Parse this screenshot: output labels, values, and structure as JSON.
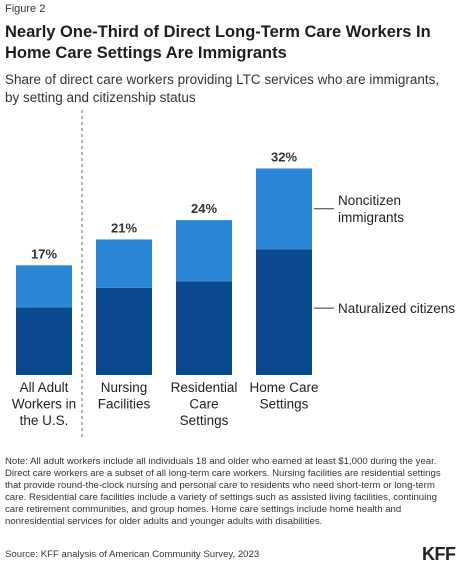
{
  "figure_label": "Figure 2",
  "title": "Nearly One-Third of Direct Long-Term Care Workers In Home Care Settings Are Immigrants",
  "subtitle": "Share of direct care workers providing LTC services who are immigrants, by setting and citizenship status",
  "note": "Note: All adult workers include all individuals 18 and older who earned at least $1,000 during the year. Direct care workers are a subset of all long-term care workers. Nursing facilities are residential settings that provide round-the-clock nursing and personal care to residents who need short-term or long-term care. Residential care facilities include a variety of settings such as assisted living facilities, continuing care retirement communities, and group homes. Home care settings include home health and nonresidential services for older adults and younger adults with disabilities.",
  "source": "Source: KFF analysis of American Community Survey, 2023",
  "logo": "KFF",
  "chart_data": {
    "type": "bar",
    "stacked": true,
    "categories": [
      [
        "All Adult",
        "Workers in",
        "the U.S."
      ],
      [
        "Nursing",
        "Facilities"
      ],
      [
        "Residential",
        "Care",
        "Settings"
      ],
      [
        "Home Care",
        "Settings"
      ]
    ],
    "totals": [
      "17%",
      "21%",
      "24%",
      "32%"
    ],
    "series": [
      {
        "name": "Naturalized citizens",
        "values": [
          10.5,
          13.5,
          14.5,
          19.5
        ],
        "color": "#0a4a8c"
      },
      {
        "name": "Noncitizen immigrants",
        "values": [
          6.5,
          7.5,
          9.5,
          12.5
        ],
        "color": "#2b86d8"
      }
    ],
    "ylim": [
      0,
      33
    ],
    "divider_after_category": 0,
    "grid": false,
    "legend_placement": "right of bars, direct labels"
  }
}
